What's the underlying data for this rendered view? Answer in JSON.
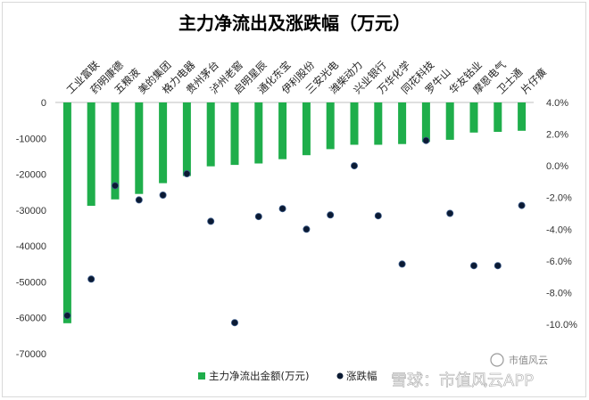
{
  "chart_data": {
    "type": "bar+scatter",
    "title": "主力净流出及涨跌幅（万元）",
    "categories": [
      "工业富联",
      "药明康德",
      "五粮液",
      "美的集团",
      "格力电器",
      "贵州茅台",
      "泸州老窖",
      "启明星辰",
      "通化东宝",
      "伊利股份",
      "三安光电",
      "潍柴动力",
      "兴业银行",
      "万华化学",
      "同花科技",
      "罗牛山",
      "华友钴业",
      "摩恩电气",
      "卫士通",
      "片仔癀"
    ],
    "series": [
      {
        "name": "主力净流出金额(万元)",
        "type": "bar",
        "axis": "left",
        "color": "#1fae4b",
        "values": [
          -61500,
          -28800,
          -27000,
          -25500,
          -22500,
          -20500,
          -17800,
          -17400,
          -17000,
          -15800,
          -14700,
          -13000,
          -11800,
          -11800,
          -11600,
          -11000,
          -10400,
          -8400,
          -8200,
          -7900
        ]
      },
      {
        "name": "涨跌幅",
        "type": "scatter",
        "axis": "right",
        "color": "#0b1a33",
        "values": [
          -9.45,
          -7.15,
          -1.25,
          -2.15,
          -1.85,
          -0.5,
          -3.5,
          -9.9,
          -3.2,
          -2.7,
          -4.0,
          -3.1,
          0.0,
          -3.15,
          -6.2,
          1.6,
          -3.0,
          -6.3,
          -6.3,
          -2.5
        ]
      }
    ],
    "ylim_left": [
      -70000,
      0
    ],
    "ylim_right": [
      -10.0,
      4.0
    ],
    "yticks_left": [
      "0",
      "-10000",
      "-20000",
      "-30000",
      "-40000",
      "-50000",
      "-60000",
      "-70000"
    ],
    "yticks_right": [
      "4.0%",
      "2.0%",
      "0.0%",
      "-2.0%",
      "-4.0%",
      "-6.0%",
      "-8.0%",
      "-10.0%"
    ],
    "grid": false,
    "legend": {
      "position": "bottom",
      "bar_label": "主力净流出金额(万元)",
      "dot_label": "涨跌幅"
    }
  },
  "watermark": {
    "logo_text": "市值风云",
    "source_text": "雪球：市值风云APP"
  }
}
